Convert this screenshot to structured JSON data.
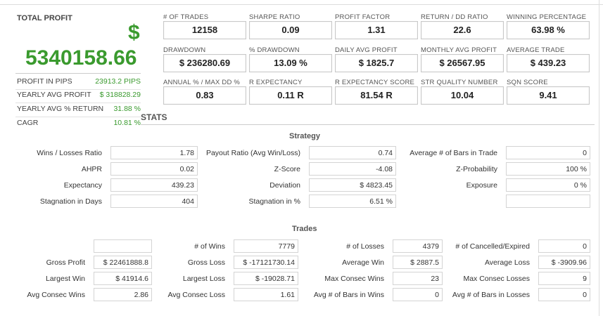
{
  "total_profit": {
    "title": "TOTAL PROFIT",
    "currency": "$",
    "value": "5340158.66",
    "rows": [
      {
        "label": "PROFIT IN PIPS",
        "value": "23913.2 PIPS"
      },
      {
        "label": "YEARLY AVG PROFIT",
        "value": "$ 318828.29"
      },
      {
        "label": "YEARLY AVG % RETURN",
        "value": "31.88 %"
      },
      {
        "label": "CAGR",
        "value": "10.81 %"
      }
    ]
  },
  "metrics": [
    {
      "label": "# OF TRADES",
      "value": "12158"
    },
    {
      "label": "SHARPE RATIO",
      "value": "0.09"
    },
    {
      "label": "PROFIT FACTOR",
      "value": "1.31"
    },
    {
      "label": "RETURN / DD RATIO",
      "value": "22.6"
    },
    {
      "label": "WINNING PERCENTAGE",
      "value": "63.98 %"
    },
    {
      "label": "DRAWDOWN",
      "value": "$ 236280.69"
    },
    {
      "label": "% DRAWDOWN",
      "value": "13.09 %"
    },
    {
      "label": "DAILY AVG PROFIT",
      "value": "$ 1825.7"
    },
    {
      "label": "MONTHLY AVG PROFIT",
      "value": "$ 26567.95"
    },
    {
      "label": "AVERAGE TRADE",
      "value": "$ 439.23"
    },
    {
      "label": "ANNUAL % / MAX DD %",
      "value": "0.83"
    },
    {
      "label": "R EXPECTANCY",
      "value": "0.11 R"
    },
    {
      "label": "R EXPECTANCY SCORE",
      "value": "81.54 R"
    },
    {
      "label": "STR QUALITY NUMBER",
      "value": "10.04"
    },
    {
      "label": "SQN SCORE",
      "value": "9.41"
    }
  ],
  "stats": {
    "title": "STATS",
    "strategy": {
      "title": "Strategy",
      "rows": [
        [
          {
            "label": "Wins / Losses Ratio",
            "value": "1.78"
          },
          {
            "label": "Payout Ratio (Avg Win/Loss)",
            "value": "0.74"
          },
          {
            "label": "Average # of Bars in Trade",
            "value": "0"
          }
        ],
        [
          {
            "label": "AHPR",
            "value": "0.02"
          },
          {
            "label": "Z-Score",
            "value": "-4.08"
          },
          {
            "label": "Z-Probability",
            "value": "100 %"
          }
        ],
        [
          {
            "label": "Expectancy",
            "value": "439.23"
          },
          {
            "label": "Deviation",
            "value": "$ 4823.45"
          },
          {
            "label": "Exposure",
            "value": "0 %"
          }
        ],
        [
          {
            "label": "Stagnation in Days",
            "value": "404"
          },
          {
            "label": "Stagnation in %",
            "value": "6.51 %"
          },
          {
            "label": "",
            "value": ""
          }
        ]
      ]
    },
    "trades": {
      "title": "Trades",
      "rows": [
        [
          {
            "label": "",
            "value": ""
          },
          {
            "label": "# of Wins",
            "value": "7779"
          },
          {
            "label": "# of Losses",
            "value": "4379"
          },
          {
            "label": "# of Cancelled/Expired",
            "value": "0"
          }
        ],
        [
          {
            "label": "Gross Profit",
            "value": "$ 22461888.8"
          },
          {
            "label": "Gross Loss",
            "value": "$ -17121730.14"
          },
          {
            "label": "Average Win",
            "value": "$ 2887.5"
          },
          {
            "label": "Average Loss",
            "value": "$ -3909.96"
          }
        ],
        [
          {
            "label": "Largest Win",
            "value": "$ 41914.6"
          },
          {
            "label": "Largest Loss",
            "value": "$ -19028.71"
          },
          {
            "label": "Max Consec Wins",
            "value": "23"
          },
          {
            "label": "Max Consec Losses",
            "value": "9"
          }
        ],
        [
          {
            "label": "Avg Consec Wins",
            "value": "2.86"
          },
          {
            "label": "Avg Consec Loss",
            "value": "1.61"
          },
          {
            "label": "Avg # of Bars in Wins",
            "value": "0"
          },
          {
            "label": "Avg # of Bars in Losses",
            "value": "0"
          }
        ]
      ]
    }
  }
}
